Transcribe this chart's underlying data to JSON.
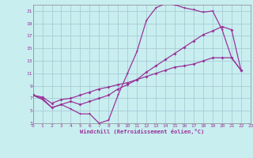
{
  "xlabel": "Windchill (Refroidissement éolien,°C)",
  "bg_color": "#c8eef0",
  "grid_color": "#a8ccd4",
  "line_color": "#993399",
  "xlim": [
    0,
    23
  ],
  "ylim": [
    3,
    22
  ],
  "xticks": [
    0,
    1,
    2,
    3,
    4,
    5,
    6,
    7,
    8,
    9,
    10,
    11,
    12,
    13,
    14,
    15,
    16,
    17,
    18,
    19,
    20,
    21,
    22,
    23
  ],
  "yticks": [
    3,
    5,
    7,
    9,
    11,
    13,
    15,
    17,
    19,
    21
  ],
  "curve1_x": [
    0,
    1,
    2,
    3,
    4,
    5,
    6,
    7,
    8,
    9,
    10,
    11,
    12,
    13,
    14,
    15,
    16,
    17,
    18,
    19,
    20,
    21,
    22
  ],
  "curve1_y": [
    7.5,
    6.8,
    5.5,
    6.0,
    5.3,
    4.5,
    4.5,
    3.0,
    3.5,
    7.5,
    11.0,
    14.5,
    19.5,
    21.5,
    22.2,
    22.0,
    21.5,
    21.2,
    20.8,
    21.0,
    18.0,
    13.5,
    11.5
  ],
  "curve2_x": [
    0,
    1,
    2,
    3,
    4,
    5,
    6,
    7,
    8,
    9,
    10,
    11,
    12,
    13,
    14,
    15,
    16,
    17,
    18,
    19,
    20,
    21,
    22
  ],
  "curve2_y": [
    7.5,
    7.0,
    5.5,
    6.0,
    6.5,
    6.0,
    6.5,
    7.0,
    7.5,
    8.5,
    9.2,
    10.0,
    11.2,
    12.2,
    13.2,
    14.2,
    15.2,
    16.2,
    17.2,
    17.8,
    18.5,
    18.0,
    11.5
  ],
  "curve3_x": [
    0,
    1,
    2,
    3,
    4,
    5,
    6,
    7,
    8,
    9,
    10,
    11,
    12,
    13,
    14,
    15,
    16,
    17,
    18,
    19,
    20,
    21,
    22
  ],
  "curve3_y": [
    7.5,
    7.2,
    6.2,
    6.8,
    7.0,
    7.5,
    8.0,
    8.5,
    8.8,
    9.2,
    9.5,
    10.0,
    10.5,
    11.0,
    11.5,
    12.0,
    12.2,
    12.5,
    13.0,
    13.5,
    13.5,
    13.5,
    11.5
  ]
}
